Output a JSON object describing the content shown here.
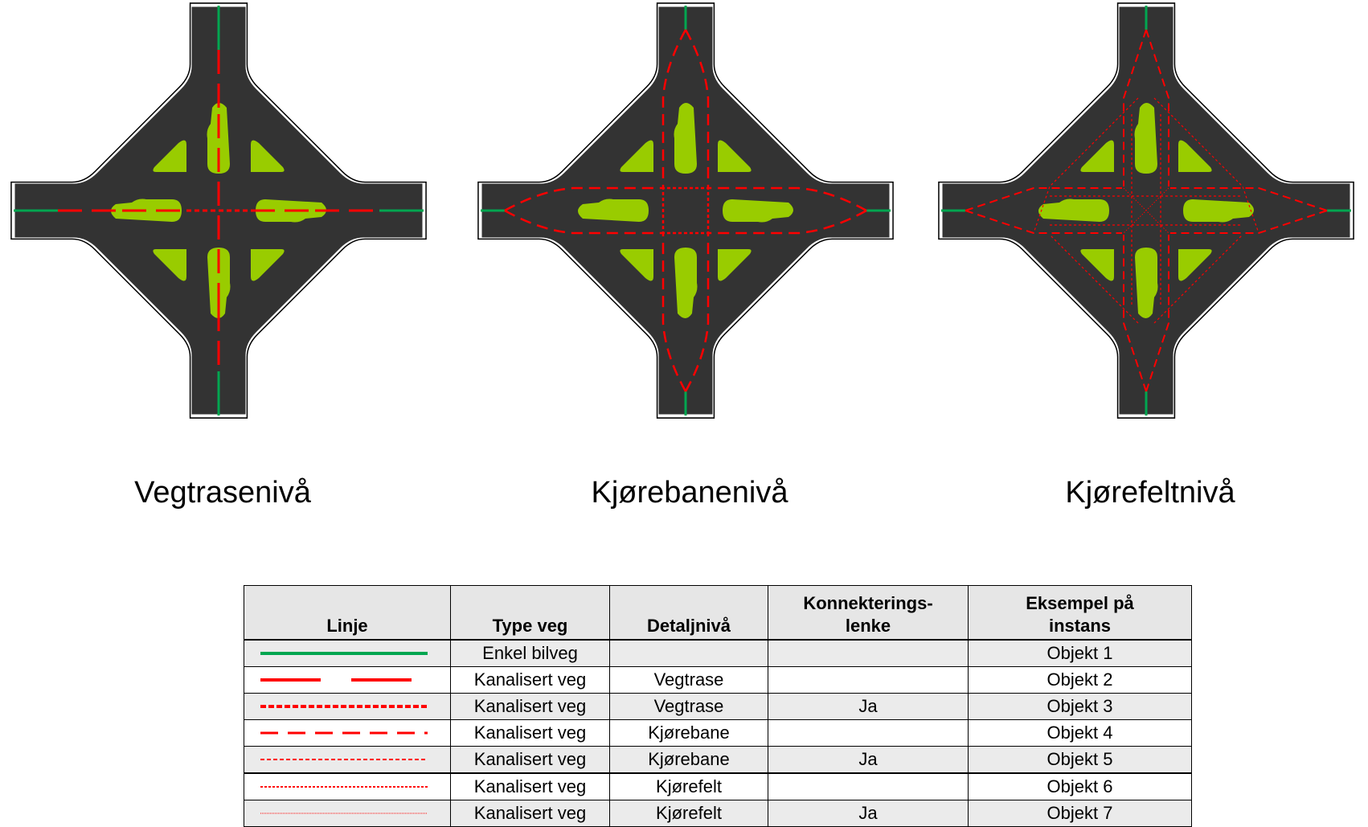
{
  "diagrams": [
    {
      "caption": "Vegtrasenivå",
      "level": "vegtrase"
    },
    {
      "caption": "Kjørebanenivå",
      "level": "kjorebane"
    },
    {
      "caption": "Kjørefeltnivå",
      "level": "kjorefelt"
    }
  ],
  "colors": {
    "road": "#333333",
    "edge": "#ffffff",
    "island": "#99cc00",
    "green_line": "#00a650",
    "red_line": "#ff0000"
  },
  "legend": {
    "headers": {
      "linje": "Linje",
      "type_veg": "Type veg",
      "detaljniva": "Detaljnivå",
      "konnektering": "Konnekterings-lenke",
      "eksempel": "Eksempel på instans"
    },
    "rows": [
      {
        "line_style": "solid-green",
        "type_veg": "Enkel bilveg",
        "detaljniva": "",
        "konnektering": "",
        "eksempel": "Objekt 1"
      },
      {
        "line_style": "red-long-dash",
        "type_veg": "Kanalisert veg",
        "detaljniva": "Vegtrase",
        "konnektering": "",
        "eksempel": "Objekt 2"
      },
      {
        "line_style": "red-short-dash-thick",
        "type_veg": "Kanalisert veg",
        "detaljniva": "Vegtrase",
        "konnektering": "Ja",
        "eksempel": "Objekt 3"
      },
      {
        "line_style": "red-medium-dash",
        "type_veg": "Kanalisert veg",
        "detaljniva": "Kjørebane",
        "konnektering": "",
        "eksempel": "Objekt 4"
      },
      {
        "line_style": "red-short-dash",
        "type_veg": "Kanalisert veg",
        "detaljniva": "Kjørebane",
        "konnektering": "Ja",
        "eksempel": "Objekt 5"
      },
      {
        "line_style": "red-fine-dash",
        "type_veg": "Kanalisert veg",
        "detaljniva": "Kjørefelt",
        "konnektering": "",
        "eksempel": "Objekt 6"
      },
      {
        "line_style": "red-dotted",
        "type_veg": "Kanalisert veg",
        "detaljniva": "Kjørefelt",
        "konnektering": "Ja",
        "eksempel": "Objekt 7"
      }
    ]
  }
}
